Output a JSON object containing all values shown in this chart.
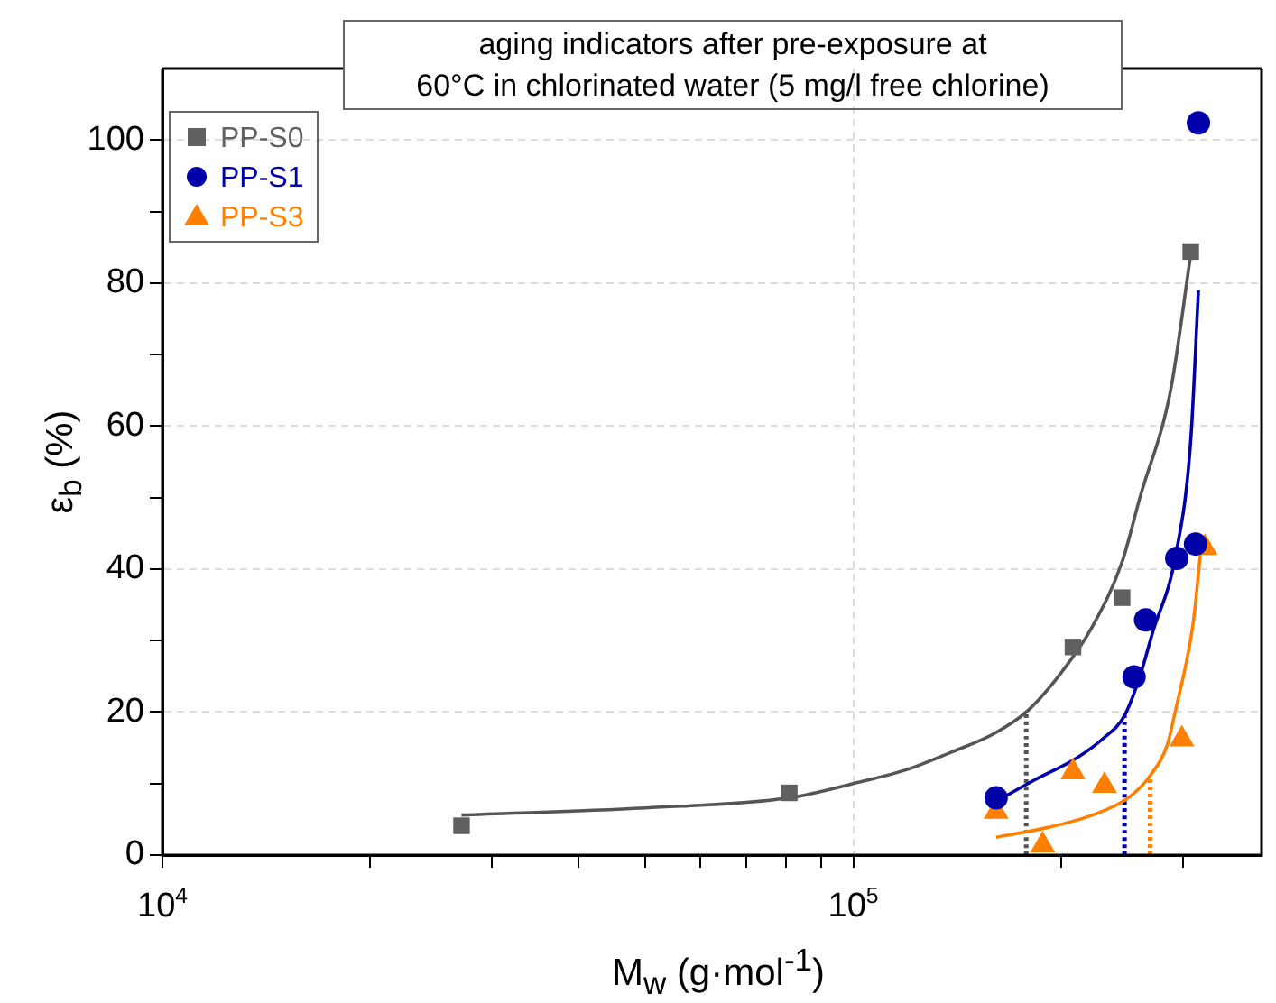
{
  "chart_data": {
    "type": "scatter",
    "title": "aging indicators after pre-exposure at\n60°C in chlorinated water (5 mg/l free chlorine)",
    "xlabel": "M$_{w}$ (g·mol$^{-1}$)",
    "ylabel": "ε$_{b}$ (%)",
    "log": "x",
    "grid": true,
    "legend": "top left",
    "xlim": [
      10000,
      390000
    ],
    "ylim": [
      0,
      110
    ],
    "xticks": [
      {
        "value": 10000,
        "label": "10$^{4}$"
      },
      {
        "value": 20000,
        "label": null
      },
      {
        "value": 30000,
        "label": null
      },
      {
        "value": 40000,
        "label": null
      },
      {
        "value": 50000,
        "label": null
      },
      {
        "value": 60000,
        "label": null
      },
      {
        "value": 70000,
        "label": null
      },
      {
        "value": 80000,
        "label": null
      },
      {
        "value": 90000,
        "label": null
      },
      {
        "value": 100000,
        "label": "10$^{5}$"
      },
      {
        "value": 200000,
        "label": null
      },
      {
        "value": 300000,
        "label": null
      }
    ],
    "yticks": [
      0,
      {
        "value": 10,
        "label": null
      },
      20,
      {
        "value": 30,
        "label": null
      },
      40,
      {
        "value": 50,
        "label": null
      },
      60,
      {
        "value": 70,
        "label": null
      },
      80,
      {
        "value": 90,
        "label": null
      },
      100
    ],
    "series": [
      {
        "type": "line",
        "marker": "none",
        "line_style": "solid",
        "color": "#555555",
        "x": [
          27100,
          50000,
          80800,
          100000,
          120000,
          138000,
          160000,
          178000,
          200000,
          222000,
          245000,
          260000,
          288000,
          308000
        ],
        "values": [
          5.6,
          6.6,
          8.0,
          10,
          12,
          14.3,
          17,
          20,
          25.5,
          32,
          41,
          50,
          65,
          84
        ]
      },
      {
        "type": "line",
        "marker": "none",
        "line_style": "solid",
        "color": "#0000a8",
        "x": [
          161000,
          183000,
          210000,
          230000,
          247000,
          260000,
          271000,
          293000,
          308000,
          316000
        ],
        "values": [
          7.5,
          10.5,
          13.5,
          16.3,
          19.5,
          25,
          31,
          42,
          58,
          79
        ]
      },
      {
        "type": "line",
        "marker": "none",
        "line_style": "solid",
        "color": "#ff8000",
        "x": [
          161000,
          190000,
          222000,
          250000,
          269000,
          285000,
          293000,
          305000,
          311000,
          318000
        ],
        "values": [
          2.5,
          3.8,
          5.6,
          8,
          11.1,
          15.5,
          20.4,
          28,
          33,
          42
        ]
      },
      {
        "type": "line",
        "marker": "none",
        "line_style": "dotted",
        "color": "#555555",
        "x": [
          178000,
          178000
        ],
        "values": [
          0,
          20
        ]
      },
      {
        "type": "line",
        "marker": "none",
        "line_style": "dotted",
        "color": "#0000a8",
        "x": [
          247000,
          247000
        ],
        "values": [
          0,
          19.5
        ]
      },
      {
        "type": "line",
        "marker": "none",
        "line_style": "dotted",
        "color": "#ff8000",
        "x": [
          269000,
          269000
        ],
        "values": [
          0,
          11.1
        ]
      },
      {
        "type": "scatter",
        "name": "PP-S0",
        "marker": "square",
        "color": "#606060",
        "x": [
          27100,
          80800,
          208000,
          245000,
          308000
        ],
        "values": [
          4.1,
          8.7,
          29.1,
          36.0,
          84.4
        ]
      },
      {
        "type": "scatter",
        "name": "PP-S1",
        "marker": "circle",
        "color": "#0000a8",
        "x": [
          161000,
          255000,
          265000,
          294000,
          313000,
          316000
        ],
        "values": [
          8.0,
          24.9,
          32.9,
          41.5,
          43.5,
          102.4
        ]
      },
      {
        "type": "scatter",
        "name": "PP-S3",
        "marker": "triangle",
        "color": "#ff8000",
        "x": [
          161000,
          188000,
          208000,
          231000,
          299000,
          323000
        ],
        "values": [
          6.1,
          1.4,
          11.6,
          9.7,
          16.2,
          43.0
        ]
      }
    ]
  }
}
